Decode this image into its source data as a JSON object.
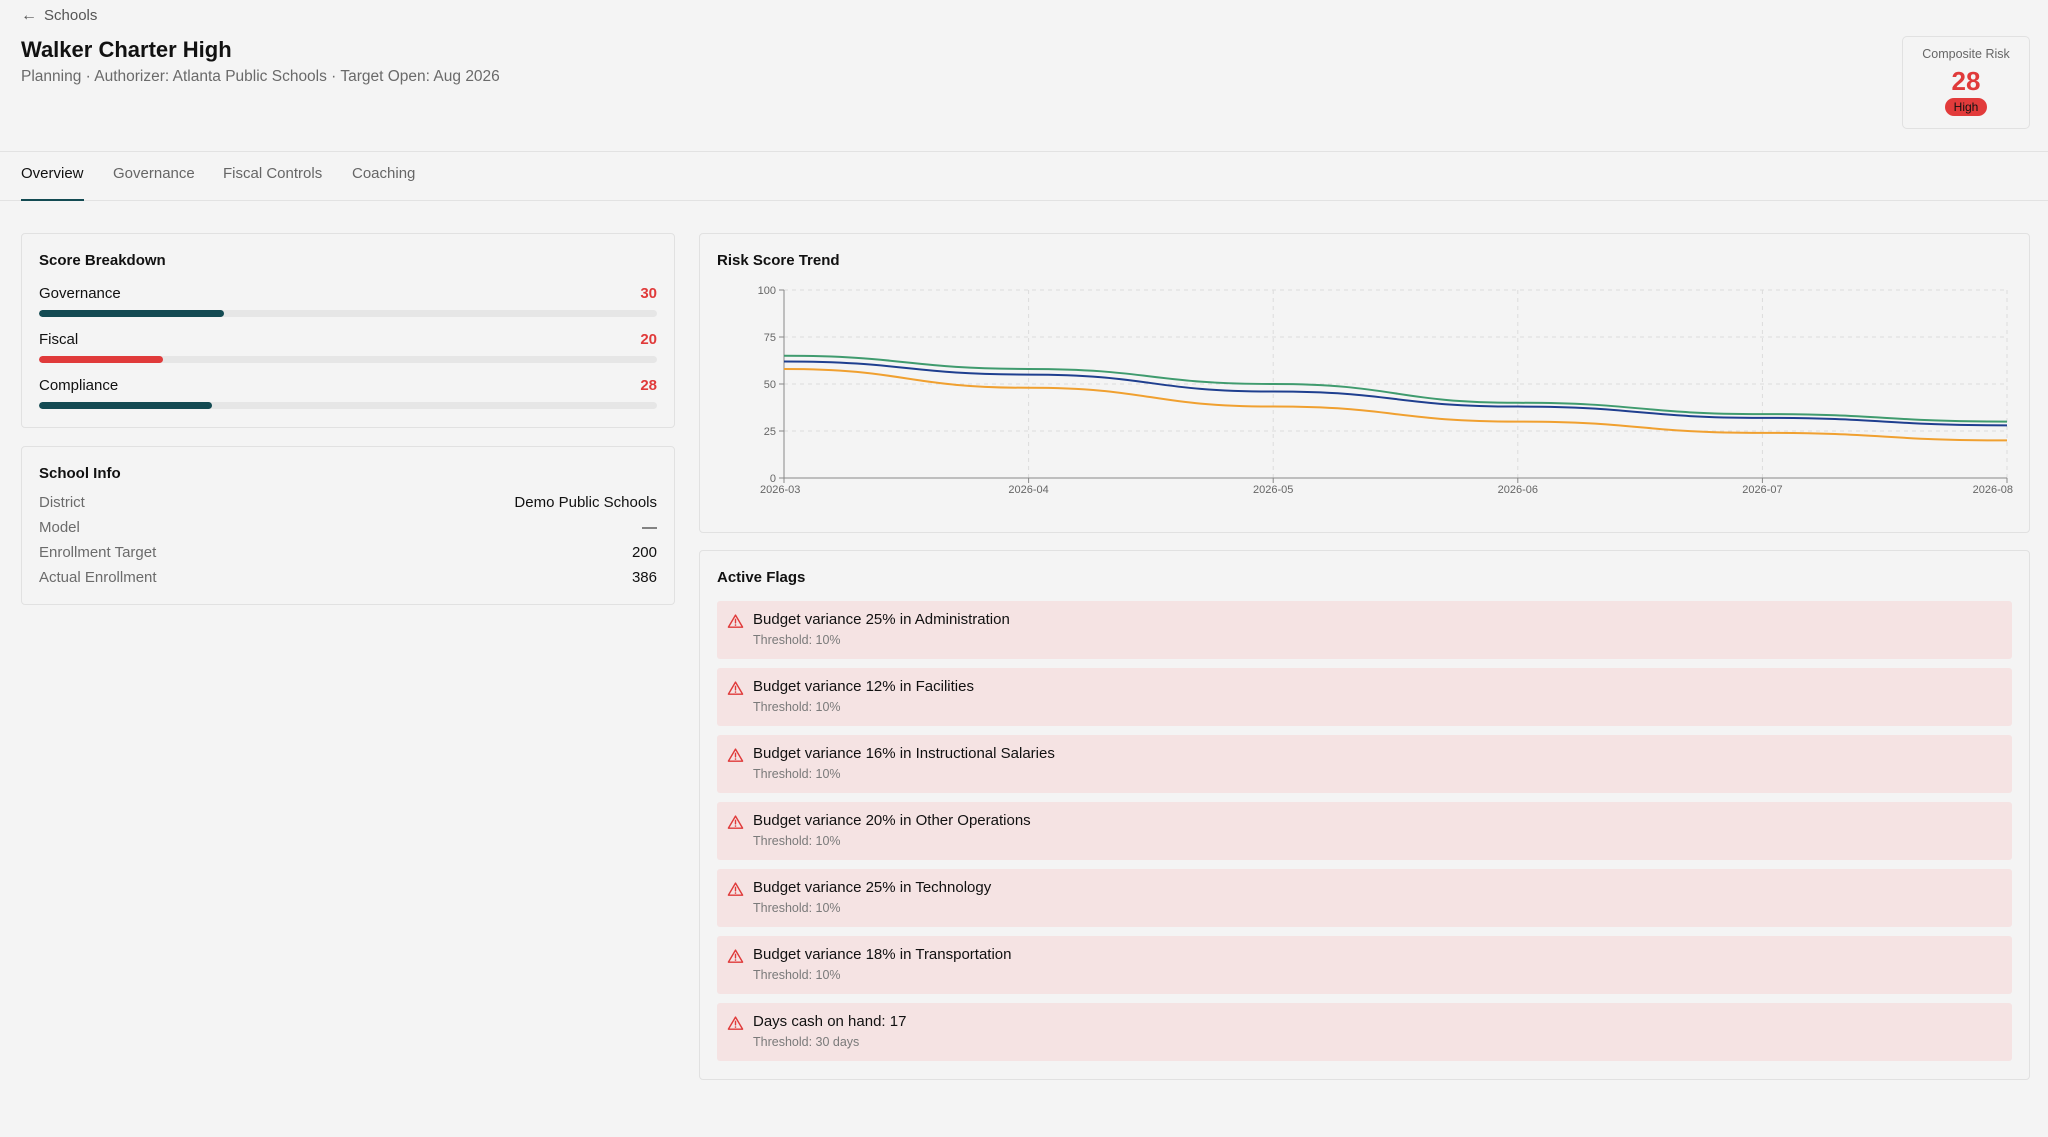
{
  "header": {
    "back_label": "Schools",
    "title": "Walker Charter High",
    "subtitle": "Planning · Authorizer: Atlanta Public Schools · Target Open: Aug 2026"
  },
  "risk": {
    "label": "Composite Risk",
    "value": "28",
    "level": "High"
  },
  "tabs": [
    {
      "label": "Overview",
      "active": true
    },
    {
      "label": "Governance",
      "active": false
    },
    {
      "label": "Fiscal Controls",
      "active": false
    },
    {
      "label": "Coaching",
      "active": false
    }
  ],
  "score_breakdown": {
    "title": "Score Breakdown",
    "items": [
      {
        "name": "Governance",
        "value": "30",
        "fraction": 0.3,
        "color": "#134a52"
      },
      {
        "name": "Fiscal",
        "value": "20",
        "fraction": 0.2,
        "color": "#e03a3a"
      },
      {
        "name": "Compliance",
        "value": "28",
        "fraction": 0.28,
        "color": "#134a52"
      }
    ]
  },
  "school_info": {
    "title": "School Info",
    "rows": [
      {
        "key": "District",
        "value": "Demo Public Schools"
      },
      {
        "key": "Model",
        "value": "—"
      },
      {
        "key": "Enrollment Target",
        "value": "200"
      },
      {
        "key": "Actual Enrollment",
        "value": "386"
      }
    ]
  },
  "trend": {
    "title": "Risk Score Trend",
    "chart_data": {
      "type": "line",
      "x": [
        "2026-03",
        "2026-04",
        "2026-05",
        "2026-06",
        "2026-07",
        "2026-08"
      ],
      "ylim": [
        0,
        100
      ],
      "yticks": [
        "0",
        "25",
        "50",
        "75",
        "100"
      ],
      "grid": true,
      "series": [
        {
          "color": "#3f9b6e",
          "values": [
            65,
            58,
            50,
            40,
            34,
            30
          ]
        },
        {
          "color": "#1f3f8f",
          "values": [
            62,
            55,
            46,
            38,
            32,
            28
          ]
        },
        {
          "color": "#f0a030",
          "values": [
            58,
            48,
            38,
            30,
            24,
            20
          ]
        }
      ]
    }
  },
  "flags": {
    "title": "Active Flags",
    "items": [
      {
        "text": "Budget variance 25% in Administration",
        "threshold": "Threshold: 10%"
      },
      {
        "text": "Budget variance 12% in Facilities",
        "threshold": "Threshold: 10%"
      },
      {
        "text": "Budget variance 16% in Instructional Salaries",
        "threshold": "Threshold: 10%"
      },
      {
        "text": "Budget variance 20% in Other Operations",
        "threshold": "Threshold: 10%"
      },
      {
        "text": "Budget variance 25% in Technology",
        "threshold": "Threshold: 10%"
      },
      {
        "text": "Budget variance 18% in Transportation",
        "threshold": "Threshold: 10%"
      },
      {
        "text": "Days cash on hand: 17",
        "threshold": "Threshold: 30 days"
      }
    ]
  }
}
